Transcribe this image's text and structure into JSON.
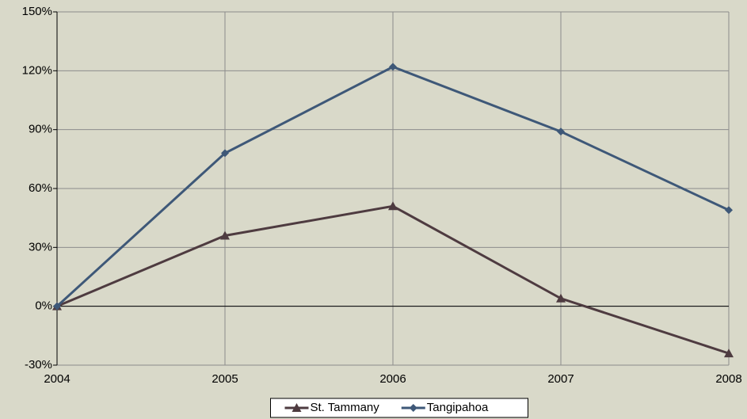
{
  "chart_data": {
    "type": "line",
    "x": [
      2004,
      2005,
      2006,
      2007,
      2008
    ],
    "xlim": [
      2004,
      2008
    ],
    "xticks": [
      2004,
      2005,
      2006,
      2007,
      2008
    ],
    "ylim": [
      -30,
      150
    ],
    "yticks": [
      {
        "value": -30,
        "label": "-30%"
      },
      {
        "value": 0,
        "label": "0%"
      },
      {
        "value": 30,
        "label": "30%"
      },
      {
        "value": 60,
        "label": "60%"
      },
      {
        "value": 90,
        "label": "90%"
      },
      {
        "value": 120,
        "label": "120%"
      },
      {
        "value": 150,
        "label": "150%"
      }
    ],
    "grid": true,
    "legend": "bottom",
    "series": [
      {
        "name": "St. Tammany",
        "color": "#4e3b40",
        "marker": "triangle",
        "values": [
          0,
          36,
          51,
          4,
          -24
        ]
      },
      {
        "name": "Tangipahoa",
        "color": "#3e5878",
        "marker": "diamond",
        "values": [
          0,
          78,
          122,
          89,
          49
        ]
      }
    ]
  }
}
